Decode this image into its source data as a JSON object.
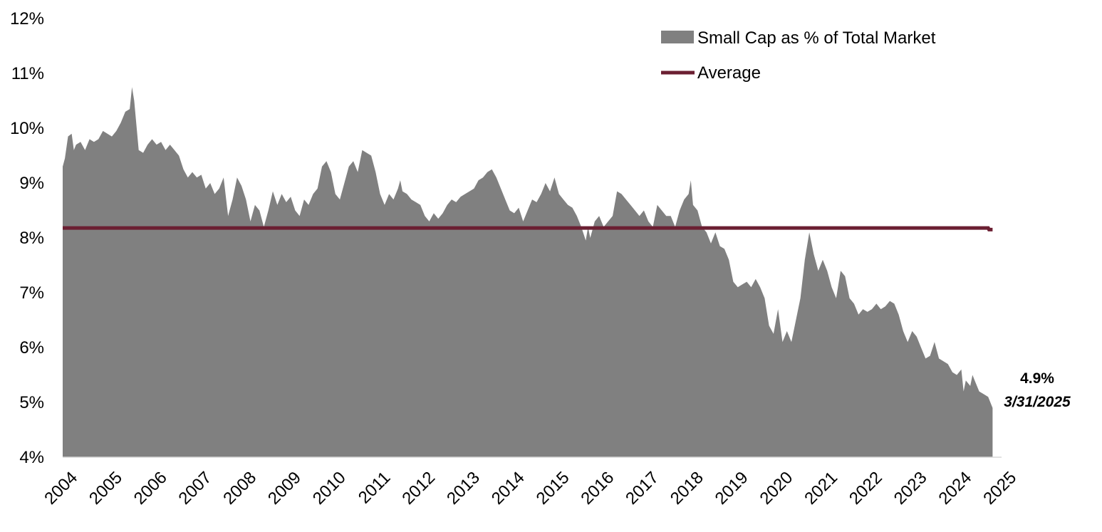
{
  "chart_data": {
    "type": "area",
    "title": "",
    "xlabel": "",
    "ylabel": "",
    "x_ticks": [
      "2004",
      "2005",
      "2006",
      "2007",
      "2008",
      "2009",
      "2010",
      "2011",
      "2012",
      "2013",
      "2014",
      "2015",
      "2016",
      "2017",
      "2018",
      "2019",
      "2020",
      "2021",
      "2022",
      "2023",
      "2024",
      "2025"
    ],
    "y_ticks": [
      "4%",
      "5%",
      "6%",
      "7%",
      "8%",
      "9%",
      "10%",
      "11%",
      "12%"
    ],
    "xlim": [
      2004.0,
      2025.0
    ],
    "ylim": [
      4,
      12
    ],
    "grid": false,
    "legend_position": "top-right",
    "colors": {
      "area": "#808080",
      "average": "#6b1f32"
    },
    "series": [
      {
        "name": "Small Cap as % of Total Market",
        "kind": "area",
        "points": [
          [
            2004.0,
            9.3
          ],
          [
            2004.05,
            9.45
          ],
          [
            2004.12,
            9.85
          ],
          [
            2004.2,
            9.9
          ],
          [
            2004.25,
            9.6
          ],
          [
            2004.3,
            9.7
          ],
          [
            2004.4,
            9.75
          ],
          [
            2004.5,
            9.6
          ],
          [
            2004.6,
            9.8
          ],
          [
            2004.7,
            9.75
          ],
          [
            2004.8,
            9.8
          ],
          [
            2004.9,
            9.95
          ],
          [
            2005.0,
            9.9
          ],
          [
            2005.1,
            9.85
          ],
          [
            2005.2,
            9.95
          ],
          [
            2005.3,
            10.1
          ],
          [
            2005.4,
            10.3
          ],
          [
            2005.5,
            10.35
          ],
          [
            2005.55,
            10.75
          ],
          [
            2005.6,
            10.5
          ],
          [
            2005.7,
            9.6
          ],
          [
            2005.8,
            9.55
          ],
          [
            2005.9,
            9.7
          ],
          [
            2006.0,
            9.8
          ],
          [
            2006.1,
            9.7
          ],
          [
            2006.2,
            9.75
          ],
          [
            2006.3,
            9.6
          ],
          [
            2006.4,
            9.7
          ],
          [
            2006.5,
            9.6
          ],
          [
            2006.6,
            9.5
          ],
          [
            2006.7,
            9.25
          ],
          [
            2006.8,
            9.1
          ],
          [
            2006.9,
            9.2
          ],
          [
            2007.0,
            9.1
          ],
          [
            2007.1,
            9.15
          ],
          [
            2007.2,
            8.9
          ],
          [
            2007.3,
            9.0
          ],
          [
            2007.4,
            8.8
          ],
          [
            2007.5,
            8.9
          ],
          [
            2007.6,
            9.1
          ],
          [
            2007.7,
            8.4
          ],
          [
            2007.8,
            8.7
          ],
          [
            2007.9,
            9.1
          ],
          [
            2008.0,
            8.95
          ],
          [
            2008.1,
            8.7
          ],
          [
            2008.2,
            8.3
          ],
          [
            2008.3,
            8.6
          ],
          [
            2008.4,
            8.5
          ],
          [
            2008.5,
            8.2
          ],
          [
            2008.6,
            8.5
          ],
          [
            2008.7,
            8.85
          ],
          [
            2008.8,
            8.6
          ],
          [
            2008.9,
            8.8
          ],
          [
            2009.0,
            8.65
          ],
          [
            2009.1,
            8.75
          ],
          [
            2009.2,
            8.5
          ],
          [
            2009.3,
            8.4
          ],
          [
            2009.4,
            8.7
          ],
          [
            2009.5,
            8.6
          ],
          [
            2009.6,
            8.8
          ],
          [
            2009.7,
            8.9
          ],
          [
            2009.8,
            9.3
          ],
          [
            2009.9,
            9.4
          ],
          [
            2010.0,
            9.2
          ],
          [
            2010.1,
            8.8
          ],
          [
            2010.2,
            8.7
          ],
          [
            2010.3,
            9.0
          ],
          [
            2010.4,
            9.3
          ],
          [
            2010.5,
            9.4
          ],
          [
            2010.6,
            9.2
          ],
          [
            2010.7,
            9.6
          ],
          [
            2010.8,
            9.55
          ],
          [
            2010.9,
            9.5
          ],
          [
            2011.0,
            9.2
          ],
          [
            2011.1,
            8.8
          ],
          [
            2011.2,
            8.6
          ],
          [
            2011.3,
            8.8
          ],
          [
            2011.4,
            8.7
          ],
          [
            2011.5,
            8.9
          ],
          [
            2011.55,
            9.05
          ],
          [
            2011.6,
            8.85
          ],
          [
            2011.7,
            8.8
          ],
          [
            2011.8,
            8.7
          ],
          [
            2011.9,
            8.65
          ],
          [
            2012.0,
            8.6
          ],
          [
            2012.1,
            8.4
          ],
          [
            2012.2,
            8.3
          ],
          [
            2012.3,
            8.45
          ],
          [
            2012.4,
            8.35
          ],
          [
            2012.5,
            8.45
          ],
          [
            2012.6,
            8.6
          ],
          [
            2012.7,
            8.7
          ],
          [
            2012.8,
            8.65
          ],
          [
            2012.9,
            8.75
          ],
          [
            2013.0,
            8.8
          ],
          [
            2013.1,
            8.85
          ],
          [
            2013.2,
            8.9
          ],
          [
            2013.3,
            9.05
          ],
          [
            2013.4,
            9.1
          ],
          [
            2013.5,
            9.2
          ],
          [
            2013.6,
            9.25
          ],
          [
            2013.7,
            9.1
          ],
          [
            2013.8,
            8.9
          ],
          [
            2013.9,
            8.7
          ],
          [
            2014.0,
            8.5
          ],
          [
            2014.1,
            8.45
          ],
          [
            2014.2,
            8.55
          ],
          [
            2014.3,
            8.3
          ],
          [
            2014.4,
            8.5
          ],
          [
            2014.5,
            8.7
          ],
          [
            2014.6,
            8.65
          ],
          [
            2014.7,
            8.8
          ],
          [
            2014.8,
            9.0
          ],
          [
            2014.9,
            8.85
          ],
          [
            2015.0,
            9.1
          ],
          [
            2015.1,
            8.8
          ],
          [
            2015.2,
            8.7
          ],
          [
            2015.3,
            8.6
          ],
          [
            2015.4,
            8.55
          ],
          [
            2015.5,
            8.4
          ],
          [
            2015.6,
            8.2
          ],
          [
            2015.7,
            7.95
          ],
          [
            2015.75,
            8.2
          ],
          [
            2015.8,
            8.0
          ],
          [
            2015.9,
            8.3
          ],
          [
            2016.0,
            8.4
          ],
          [
            2016.1,
            8.2
          ],
          [
            2016.2,
            8.3
          ],
          [
            2016.3,
            8.4
          ],
          [
            2016.4,
            8.85
          ],
          [
            2016.5,
            8.8
          ],
          [
            2016.6,
            8.7
          ],
          [
            2016.7,
            8.6
          ],
          [
            2016.8,
            8.5
          ],
          [
            2016.9,
            8.4
          ],
          [
            2017.0,
            8.5
          ],
          [
            2017.1,
            8.3
          ],
          [
            2017.2,
            8.2
          ],
          [
            2017.3,
            8.6
          ],
          [
            2017.4,
            8.5
          ],
          [
            2017.5,
            8.4
          ],
          [
            2017.6,
            8.4
          ],
          [
            2017.7,
            8.2
          ],
          [
            2017.8,
            8.5
          ],
          [
            2017.9,
            8.7
          ],
          [
            2018.0,
            8.8
          ],
          [
            2018.05,
            9.05
          ],
          [
            2018.1,
            8.6
          ],
          [
            2018.2,
            8.5
          ],
          [
            2018.3,
            8.2
          ],
          [
            2018.4,
            8.1
          ],
          [
            2018.5,
            7.9
          ],
          [
            2018.6,
            8.1
          ],
          [
            2018.7,
            7.85
          ],
          [
            2018.8,
            7.8
          ],
          [
            2018.9,
            7.6
          ],
          [
            2019.0,
            7.2
          ],
          [
            2019.1,
            7.1
          ],
          [
            2019.2,
            7.15
          ],
          [
            2019.3,
            7.2
          ],
          [
            2019.4,
            7.1
          ],
          [
            2019.5,
            7.25
          ],
          [
            2019.6,
            7.1
          ],
          [
            2019.7,
            6.9
          ],
          [
            2019.8,
            6.4
          ],
          [
            2019.9,
            6.25
          ],
          [
            2020.0,
            6.7
          ],
          [
            2020.1,
            6.1
          ],
          [
            2020.2,
            6.3
          ],
          [
            2020.3,
            6.1
          ],
          [
            2020.4,
            6.5
          ],
          [
            2020.5,
            6.9
          ],
          [
            2020.6,
            7.6
          ],
          [
            2020.7,
            8.1
          ],
          [
            2020.8,
            7.7
          ],
          [
            2020.9,
            7.4
          ],
          [
            2021.0,
            7.6
          ],
          [
            2021.1,
            7.4
          ],
          [
            2021.2,
            7.1
          ],
          [
            2021.3,
            6.9
          ],
          [
            2021.4,
            7.4
          ],
          [
            2021.5,
            7.3
          ],
          [
            2021.6,
            6.9
          ],
          [
            2021.7,
            6.8
          ],
          [
            2021.8,
            6.6
          ],
          [
            2021.9,
            6.7
          ],
          [
            2022.0,
            6.65
          ],
          [
            2022.1,
            6.7
          ],
          [
            2022.2,
            6.8
          ],
          [
            2022.3,
            6.7
          ],
          [
            2022.4,
            6.75
          ],
          [
            2022.5,
            6.85
          ],
          [
            2022.6,
            6.8
          ],
          [
            2022.7,
            6.6
          ],
          [
            2022.8,
            6.3
          ],
          [
            2022.9,
            6.1
          ],
          [
            2023.0,
            6.3
          ],
          [
            2023.1,
            6.2
          ],
          [
            2023.2,
            6.0
          ],
          [
            2023.3,
            5.8
          ],
          [
            2023.4,
            5.85
          ],
          [
            2023.5,
            6.1
          ],
          [
            2023.6,
            5.8
          ],
          [
            2023.7,
            5.75
          ],
          [
            2023.8,
            5.7
          ],
          [
            2023.9,
            5.55
          ],
          [
            2024.0,
            5.5
          ],
          [
            2024.1,
            5.6
          ],
          [
            2024.15,
            5.2
          ],
          [
            2024.2,
            5.4
          ],
          [
            2024.3,
            5.3
          ],
          [
            2024.35,
            5.5
          ],
          [
            2024.4,
            5.4
          ],
          [
            2024.5,
            5.2
          ],
          [
            2024.6,
            5.15
          ],
          [
            2024.7,
            5.1
          ],
          [
            2024.75,
            5.0
          ],
          [
            2024.8,
            4.9
          ]
        ]
      },
      {
        "name": "Average",
        "kind": "line",
        "points": [
          [
            2004.0,
            8.18
          ],
          [
            2024.7,
            8.18
          ],
          [
            2024.72,
            8.15
          ],
          [
            2024.8,
            8.15
          ]
        ]
      }
    ],
    "annotation": {
      "value": "4.9%",
      "date": "3/31/2025"
    }
  }
}
